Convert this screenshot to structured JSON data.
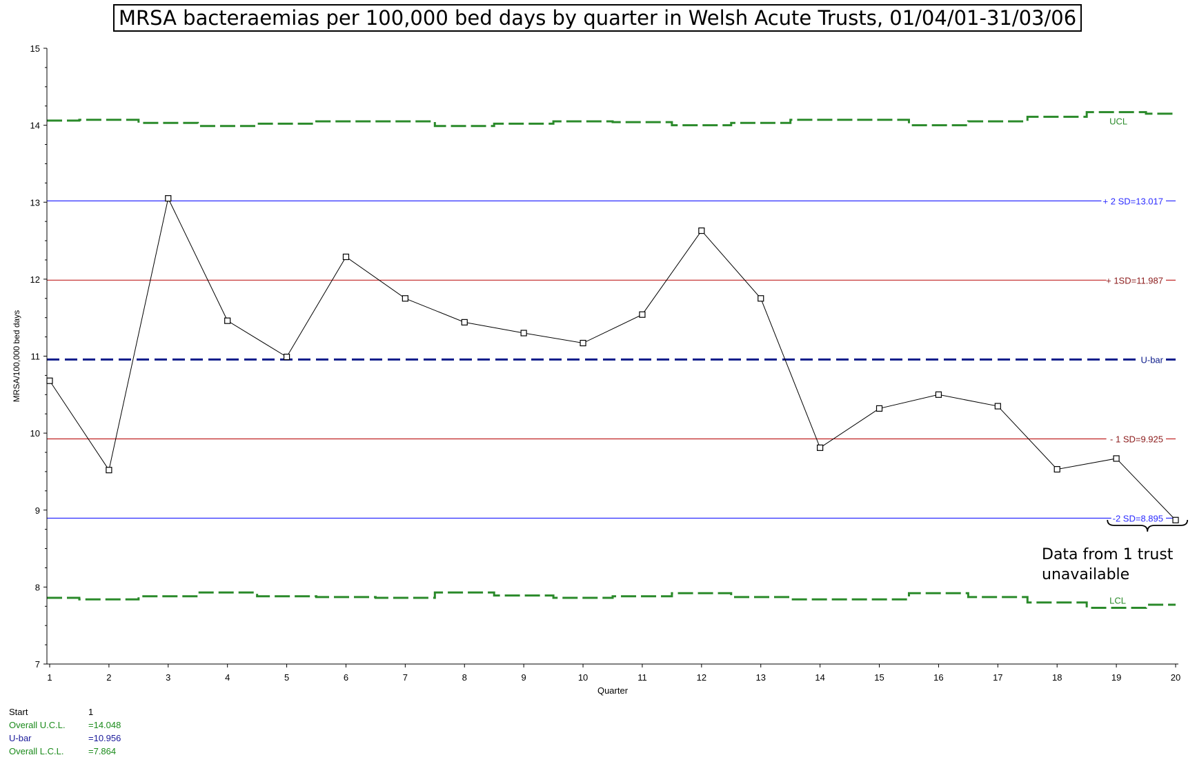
{
  "chart_data": {
    "type": "line",
    "title": "MRSA bacteraemias per 100,000 bed days by quarter in Welsh Acute Trusts, 01/04/01-31/03/06",
    "xlabel": "Quarter",
    "ylabel": "MRSA/100,000 bed days",
    "xlim": [
      1,
      20
    ],
    "ylim": [
      7,
      15
    ],
    "x": [
      1,
      2,
      3,
      4,
      5,
      6,
      7,
      8,
      9,
      10,
      11,
      12,
      13,
      14,
      15,
      16,
      17,
      18,
      19,
      20
    ],
    "y_ticks": [
      7,
      8,
      9,
      10,
      11,
      12,
      13,
      14,
      15
    ],
    "series": [
      {
        "values": [
          10.68,
          9.52,
          13.05,
          11.46,
          10.99,
          12.29,
          11.75,
          11.44,
          11.3,
          11.17,
          11.54,
          12.63,
          11.75,
          9.81,
          10.32,
          10.5,
          10.35,
          9.53,
          9.67,
          8.87
        ],
        "color": "#000000"
      }
    ],
    "ucl": {
      "label": "UCL",
      "values": [
        14.06,
        14.07,
        14.03,
        13.99,
        14.02,
        14.05,
        14.05,
        13.99,
        14.02,
        14.05,
        14.04,
        14.0,
        14.03,
        14.07,
        14.07,
        14.0,
        14.05,
        14.11,
        14.17,
        14.15
      ],
      "color": "#2a8a2a"
    },
    "lcl": {
      "label": "LCL",
      "values": [
        7.86,
        7.84,
        7.88,
        7.93,
        7.88,
        7.87,
        7.86,
        7.93,
        7.89,
        7.86,
        7.88,
        7.92,
        7.87,
        7.84,
        7.84,
        7.92,
        7.87,
        7.8,
        7.73,
        7.77
      ],
      "color": "#2a8a2a"
    },
    "reference_lines": [
      {
        "label": "+ 2 SD=13.017",
        "value": 13.017,
        "color": "#2b2bff",
        "style": "solid"
      },
      {
        "label": "+ 1SD=11.987",
        "value": 11.987,
        "color": "#c02020",
        "style": "solid",
        "label_color": "#8b1a1a"
      },
      {
        "label": "U-bar",
        "value": 10.956,
        "color": "#0a1a8a",
        "style": "dashed"
      },
      {
        "label": "- 1 SD=9.925",
        "value": 9.925,
        "color": "#c02020",
        "style": "solid",
        "label_color": "#8b1a1a"
      },
      {
        "label": "-2 SD=8.895",
        "value": 8.895,
        "color": "#2b2bff",
        "style": "solid"
      }
    ],
    "annotation": {
      "text_line1": "Data from 1 trust",
      "text_line2": "unavailable",
      "from_x": 18.85,
      "to_x": 20.2
    },
    "legend": {
      "start_label": "Start",
      "start_value": "1",
      "ucl_label": "Overall U.C.L.",
      "ucl_value": "=14.048",
      "ubar_label": "U-bar",
      "ubar_value": "=10.956",
      "lcl_label": "Overall L.C.L.",
      "lcl_value": "=7.864",
      "ucl_color": "#1a8a1a",
      "ubar_color": "#1a1a9a",
      "lcl_color": "#1a8a1a"
    }
  }
}
